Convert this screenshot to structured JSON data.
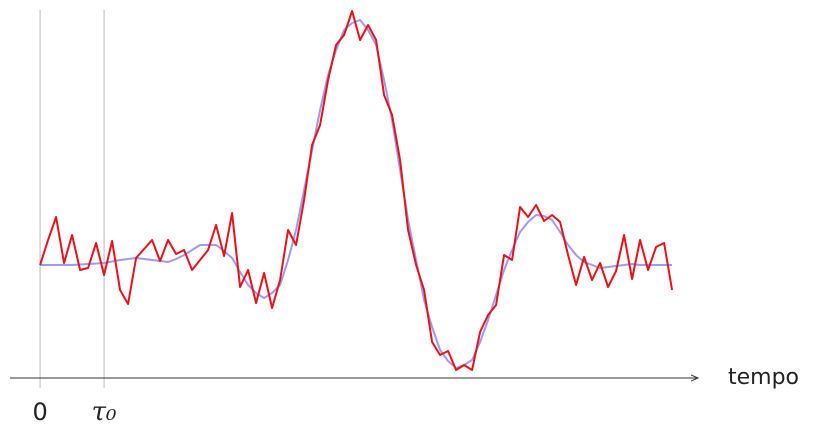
{
  "chart_data": {
    "type": "line",
    "x_label": "tempo",
    "x": [
      0,
      0.125,
      0.25,
      0.375,
      0.5,
      0.625,
      0.75,
      0.875,
      1,
      1.125,
      1.25,
      1.375,
      1.5,
      1.625,
      1.75,
      1.875,
      2,
      2.125,
      2.25,
      2.375,
      2.5,
      2.625,
      2.75,
      2.875,
      3,
      3.125,
      3.25,
      3.375,
      3.5,
      3.625,
      3.75,
      3.875,
      4,
      4.125,
      4.25,
      4.375,
      4.5,
      4.625,
      4.75,
      4.875,
      5,
      5.125,
      5.25,
      5.375,
      5.5,
      5.625,
      5.75,
      5.875,
      6,
      6.125,
      6.25,
      6.375,
      6.5,
      6.625,
      6.75,
      6.875,
      7,
      7.125,
      7.25,
      7.375,
      7.5,
      7.625,
      7.75,
      7.875,
      8,
      8.125,
      8.25,
      8.375,
      8.5,
      8.625,
      8.75,
      8.875,
      9,
      9.125,
      9.25,
      9.375,
      9.5,
      9.625,
      9.75,
      9.875
    ],
    "series": [
      {
        "color": "#9b9bf0",
        "values": [
          0,
          0,
          0,
          0,
          0,
          0.005,
          0.01,
          0.015,
          0.02,
          0.035,
          0.05,
          0.06,
          0.07,
          0.06,
          0.05,
          0.04,
          0.03,
          0.06,
          0.1,
          0.15,
          0.2,
          0.2,
          0.2,
          0.14,
          0.07,
          -0.07,
          -0.2,
          -0.28,
          -0.33,
          -0.28,
          -0.2,
          0.05,
          0.35,
          0.75,
          1.15,
          1.55,
          1.9,
          2.15,
          2.35,
          2.42,
          2.45,
          2.35,
          2.2,
          1.85,
          1.45,
          0.95,
          0.45,
          0.05,
          -0.35,
          -0.62,
          -0.85,
          -0.96,
          -1.03,
          -1,
          -0.95,
          -0.77,
          -0.55,
          -0.3,
          -0.05,
          0.15,
          0.33,
          0.43,
          0.5,
          0.49,
          0.45,
          0.33,
          0.2,
          0.1,
          0.03,
          0,
          -0.03,
          -0.02,
          -0.01,
          0,
          0.01,
          0,
          0,
          0,
          0,
          0
        ]
      },
      {
        "color": "#e8101a",
        "values": [
          0,
          0.25,
          0.48,
          0.02,
          0.3,
          -0.05,
          -0.03,
          0.22,
          -0.1,
          0.24,
          -0.25,
          -0.39,
          0.07,
          0.16,
          0.25,
          0.04,
          0.25,
          0.11,
          0.15,
          -0.05,
          0.05,
          0.15,
          0.4,
          0.09,
          0.52,
          -0.22,
          -0.05,
          -0.38,
          -0.08,
          -0.43,
          -0.15,
          0.35,
          0.2,
          0.65,
          1.2,
          1.4,
          1.85,
          2.2,
          2.3,
          2.54,
          2.25,
          2.4,
          2.25,
          1.7,
          1.5,
          1.05,
          0.35,
          0,
          -0.25,
          -0.77,
          -0.9,
          -0.86,
          -1.05,
          -1,
          -1.05,
          -0.67,
          -0.5,
          -0.4,
          0.1,
          0.05,
          0.58,
          0.48,
          0.6,
          0.44,
          0.5,
          0.43,
          0.1,
          -0.2,
          0.08,
          -0.15,
          0.02,
          -0.22,
          -0.06,
          0.3,
          -0.14,
          0.25,
          -0.05,
          0.18,
          0.22,
          -0.25
        ]
      }
    ],
    "xlim": [
      -0.47,
      10.28
    ],
    "ylim": [
      -1.13,
      2.6
    ],
    "xticks": [
      0,
      {
        "value": 1,
        "label": "τ₀"
      }
    ],
    "grid": true
  }
}
